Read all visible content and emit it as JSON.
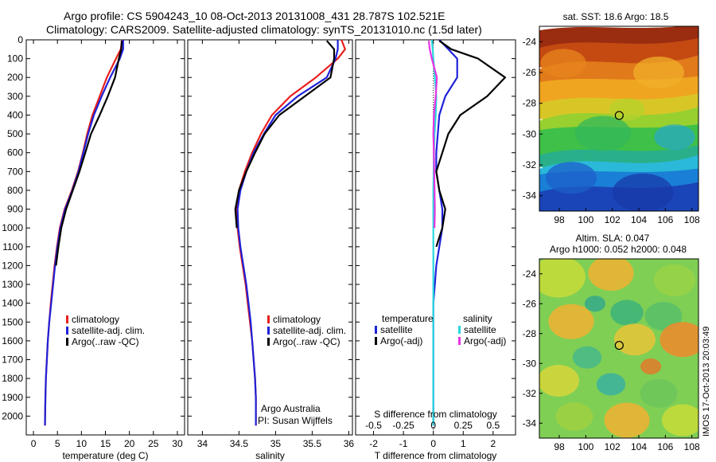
{
  "title_line1": "Argo profile: CS 5904243_10 08-Oct-2013 20131008_431 28.787S 102.521E",
  "title_line2": "Climatology: CARS2009. Satellite-adjusted climatology: synTS_20131010.nc (1.5d later)",
  "colors": {
    "climatology": "#e8201e",
    "satellite": "#1f21d8",
    "argo": "#000000",
    "sal_satellite": "#27d7de",
    "sal_argo": "#e834e3"
  },
  "chart_data": [
    {
      "type": "line",
      "panel": "temperature",
      "xlabel": "temperature (deg C)",
      "ylabel": "",
      "xlim": [
        -1.5,
        31.5
      ],
      "ylim": [
        2100,
        0
      ],
      "xticks": [
        0,
        5,
        10,
        15,
        20,
        25,
        30
      ],
      "yticks": [
        0,
        100,
        200,
        300,
        400,
        500,
        600,
        700,
        800,
        900,
        1000,
        1100,
        1200,
        1300,
        1400,
        1500,
        1600,
        1700,
        1800,
        1900,
        2000
      ],
      "legend": [
        "climatology",
        "satellite-adj. clim.",
        "Argo(..raw -QC)"
      ],
      "series": [
        {
          "name": "climatology",
          "color_key": "climatology",
          "x": [
            18.5,
            18.2,
            17.2,
            15.3,
            13.8,
            12.3,
            11.2,
            10.3,
            9.3,
            8.0,
            6.5,
            5.5,
            4.9,
            4.4,
            4.0,
            3.6,
            3.3,
            3.0,
            2.8,
            2.6,
            2.5,
            2.4
          ],
          "y": [
            0,
            50,
            100,
            200,
            300,
            400,
            500,
            600,
            700,
            800,
            900,
            1000,
            1100,
            1200,
            1300,
            1400,
            1500,
            1600,
            1700,
            1800,
            1900,
            2050
          ]
        },
        {
          "name": "satellite-adj. clim.",
          "color_key": "satellite",
          "x": [
            18.7,
            18.7,
            18.0,
            16.0,
            14.2,
            12.6,
            11.4,
            10.4,
            9.4,
            8.1,
            6.6,
            5.6,
            5.0,
            4.5,
            4.1,
            3.7,
            3.3,
            3.0,
            2.8,
            2.6,
            2.5,
            2.4
          ],
          "y": [
            0,
            50,
            100,
            200,
            300,
            400,
            500,
            600,
            700,
            800,
            900,
            1000,
            1100,
            1200,
            1300,
            1400,
            1500,
            1600,
            1700,
            1800,
            1900,
            2050
          ]
        },
        {
          "name": "Argo(..raw -QC)",
          "color_key": "argo",
          "x": [
            18.4,
            18.3,
            17.8,
            17.0,
            15.5,
            13.8,
            12.0,
            10.8,
            9.6,
            8.2,
            6.8,
            5.8,
            5.2,
            4.7
          ],
          "y": [
            5,
            50,
            100,
            200,
            300,
            400,
            500,
            600,
            700,
            800,
            900,
            1000,
            1100,
            1200
          ]
        }
      ]
    },
    {
      "type": "line",
      "panel": "salinity",
      "xlabel": "salinity",
      "ylabel": "",
      "xlim": [
        33.8,
        36.05
      ],
      "ylim": [
        2100,
        0
      ],
      "xticks": [
        34,
        34.5,
        35,
        35.5,
        36
      ],
      "xtick_labels": [
        "34",
        "34.5",
        "35",
        "35.5",
        "36"
      ],
      "legend": [
        "climatology",
        "satellite-adj. clim.",
        "Argo(..raw -QC)"
      ],
      "series": [
        {
          "name": "climatology",
          "color_key": "climatology",
          "x": [
            35.9,
            35.95,
            35.85,
            35.55,
            35.2,
            34.95,
            34.8,
            34.68,
            34.58,
            34.5,
            34.47,
            34.48,
            34.51,
            34.55,
            34.59,
            34.62,
            34.65,
            34.68,
            34.7,
            34.72,
            34.73,
            34.73
          ],
          "y": [
            0,
            50,
            100,
            200,
            300,
            400,
            500,
            600,
            700,
            800,
            900,
            1000,
            1100,
            1200,
            1300,
            1400,
            1500,
            1600,
            1700,
            1800,
            1900,
            2050
          ]
        },
        {
          "name": "satellite-adj. clim.",
          "color_key": "satellite",
          "x": [
            35.85,
            35.85,
            35.82,
            35.7,
            35.3,
            35.0,
            34.84,
            34.7,
            34.6,
            34.52,
            34.48,
            34.49,
            34.52,
            34.56,
            34.6,
            34.63,
            34.66,
            34.68,
            34.7,
            34.72,
            34.73,
            34.73
          ],
          "y": [
            0,
            50,
            100,
            200,
            300,
            400,
            500,
            600,
            700,
            800,
            900,
            1000,
            1100,
            1200,
            1300,
            1400,
            1500,
            1600,
            1700,
            1800,
            1900,
            2050
          ]
        },
        {
          "name": "Argo(..raw -QC)",
          "color_key": "argo",
          "x": [
            35.7,
            35.8,
            35.8,
            35.75,
            35.4,
            35.05,
            34.85,
            34.72,
            34.6,
            34.5,
            34.45,
            34.47
          ],
          "y": [
            5,
            50,
            100,
            200,
            300,
            400,
            500,
            600,
            700,
            800,
            900,
            1000
          ]
        }
      ]
    },
    {
      "type": "line",
      "panel": "difference",
      "xlabel": "T difference from climatology",
      "xlabel_top": "S difference from climatology",
      "xlim": [
        -2.6,
        2.75
      ],
      "ylim": [
        2100,
        0
      ],
      "xticks": [
        -2,
        -1,
        0,
        1,
        2
      ],
      "top_ticks": [
        "-0.5",
        "-0.25",
        "0",
        "0.25",
        "0.5"
      ],
      "legend_headers": [
        "temperature",
        "salinity"
      ],
      "legend": [
        "satellite",
        "Argo(-adj)",
        "satellite",
        "Argo(-adj)"
      ],
      "series": [
        {
          "name": "satellite",
          "quantity": "temperature",
          "color_key": "satellite",
          "x": [
            0.2,
            0.5,
            0.8,
            0.8,
            0.4,
            0.2,
            0.15,
            0.1,
            0.1,
            0.2,
            0.3,
            0.3,
            0.2,
            0.1,
            0.05,
            0.0,
            0.0,
            0.0,
            0.0,
            0.0
          ],
          "y": [
            0,
            50,
            100,
            200,
            300,
            400,
            500,
            600,
            700,
            800,
            900,
            1000,
            1100,
            1200,
            1300,
            1400,
            1500,
            1600,
            1800,
            2050
          ]
        },
        {
          "name": "Argo(-adj)",
          "quantity": "temperature",
          "color_key": "argo",
          "x": [
            0.2,
            0.6,
            1.5,
            2.4,
            1.8,
            0.9,
            0.5,
            0.3,
            0.1,
            0.2,
            0.4,
            0.3,
            0.1
          ],
          "y": [
            5,
            50,
            100,
            200,
            300,
            400,
            500,
            600,
            700,
            800,
            900,
            1000,
            1100
          ]
        },
        {
          "name": "satellite",
          "quantity": "salinity",
          "color_key": "sal_satellite",
          "x": [
            -0.05,
            -0.02,
            0.0,
            0.05,
            0.1,
            0.08,
            0.04,
            0.02,
            0.01,
            0.0,
            0.0,
            0.0,
            0.0,
            0.0
          ],
          "y": [
            0,
            50,
            100,
            200,
            300,
            400,
            500,
            600,
            700,
            800,
            1000,
            1200,
            1600,
            2050
          ]
        },
        {
          "name": "Argo(-adj)",
          "quantity": "salinity",
          "color_key": "sal_argo",
          "x": [
            -0.15,
            -0.12,
            -0.05,
            0.12,
            0.08,
            0.02,
            0.0,
            0.02,
            0.03,
            0.04,
            0.05,
            0.04
          ],
          "y": [
            5,
            50,
            100,
            200,
            300,
            400,
            500,
            600,
            700,
            800,
            900,
            1000
          ]
        }
      ]
    },
    {
      "type": "heatmap",
      "panel": "sst_map",
      "title": "sat. SST: 18.6  Argo: 18.5",
      "xticks": [
        98,
        100,
        102,
        104,
        106,
        108
      ],
      "yticks": [
        -24,
        -26,
        -28,
        -30,
        -32,
        -34
      ],
      "xlim": [
        96.5,
        108.5
      ],
      "ylim": [
        -35,
        -23
      ],
      "marker": {
        "lon": 102.52,
        "lat": -28.79
      }
    },
    {
      "type": "heatmap",
      "panel": "sla_map",
      "title": "Altim. SLA: 0.047",
      "subtitle": "Argo h1000: 0.052 h2000: 0.048",
      "xticks": [
        98,
        100,
        102,
        104,
        106,
        108
      ],
      "yticks": [
        -24,
        -26,
        -28,
        -30,
        -32,
        -34
      ],
      "xlim": [
        96.5,
        108.5
      ],
      "ylim": [
        -35,
        -23
      ],
      "marker": {
        "lon": 102.52,
        "lat": -28.79
      }
    }
  ],
  "annotations": {
    "argo_australia": "Argo Australia",
    "pi": "PI: Susan Wijffels",
    "side_stamp": "IMOS 17-Oct-2013 20:03:49"
  }
}
